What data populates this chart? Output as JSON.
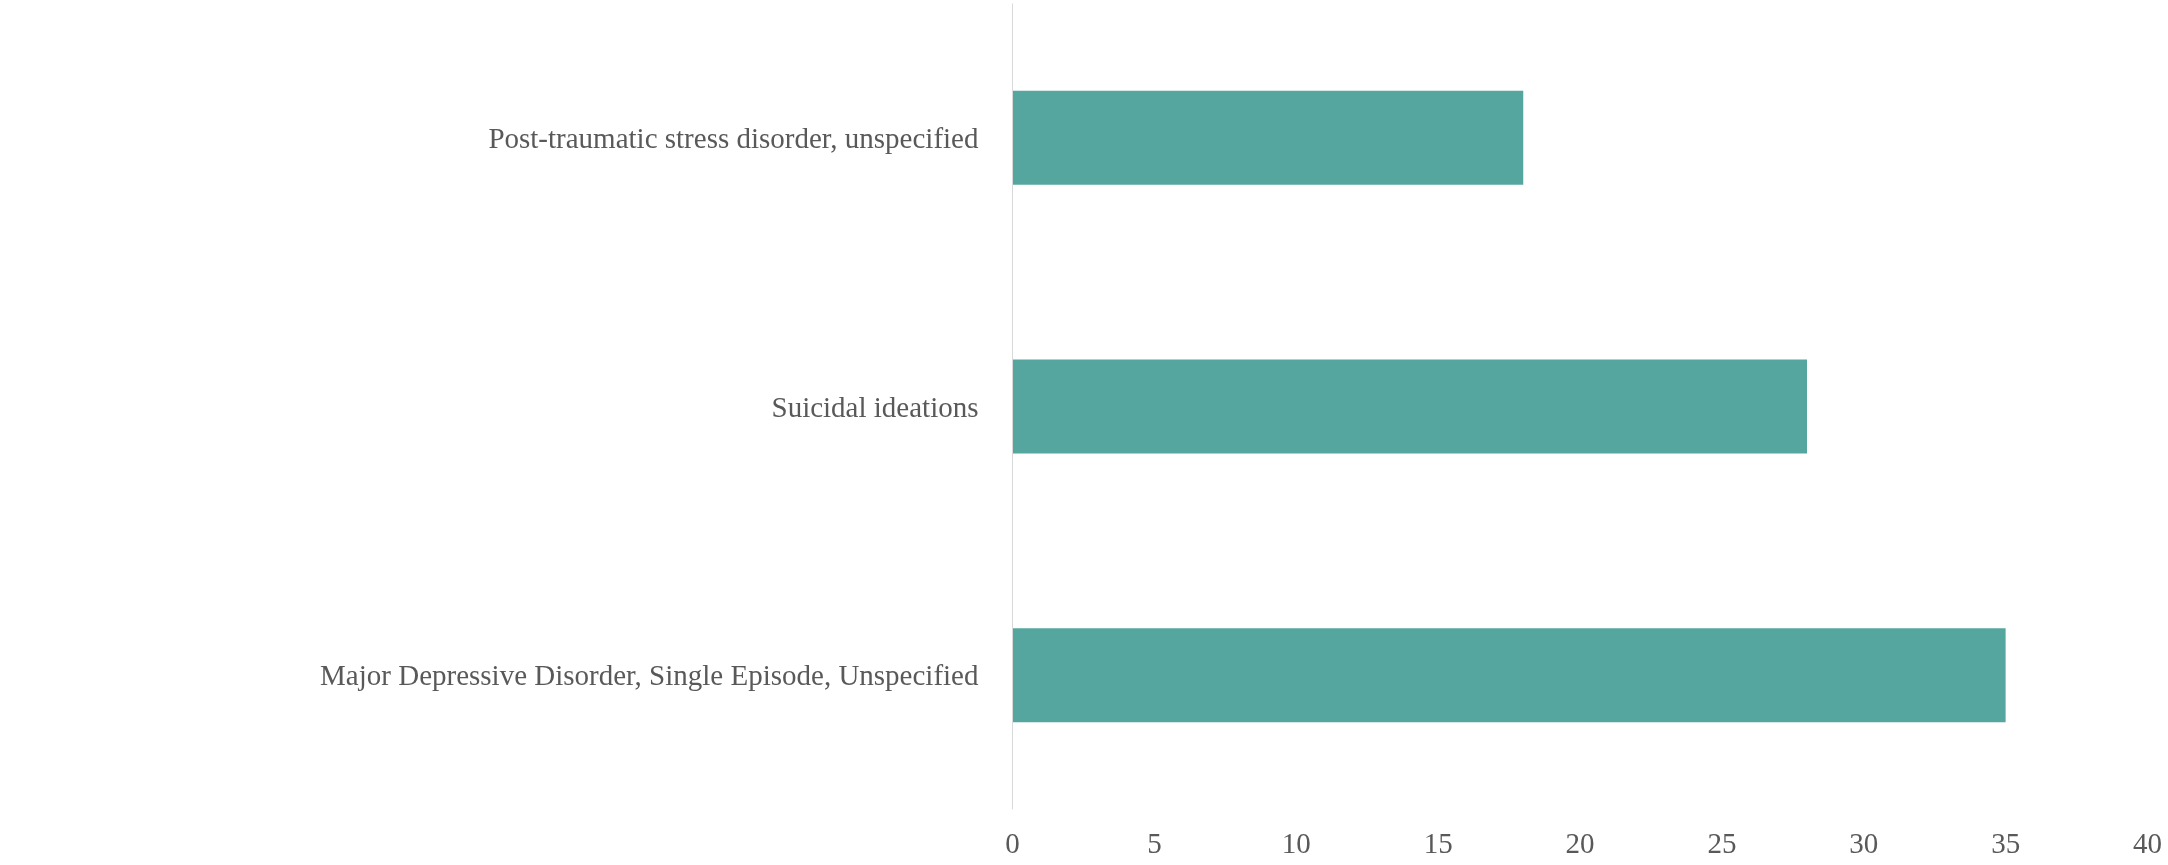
{
  "chart_data": {
    "type": "bar",
    "orientation": "horizontal",
    "categories": [
      "Post-traumatic stress disorder, unspecified",
      "Suicidal ideations",
      "Major Depressive Disorder, Single Episode, Unspecified"
    ],
    "values": [
      18,
      28,
      35
    ],
    "color": "#56a6a0",
    "xlim": [
      0,
      40
    ],
    "xticks": [
      0,
      5,
      10,
      15,
      20,
      25,
      30,
      35,
      40
    ],
    "grid": false
  }
}
